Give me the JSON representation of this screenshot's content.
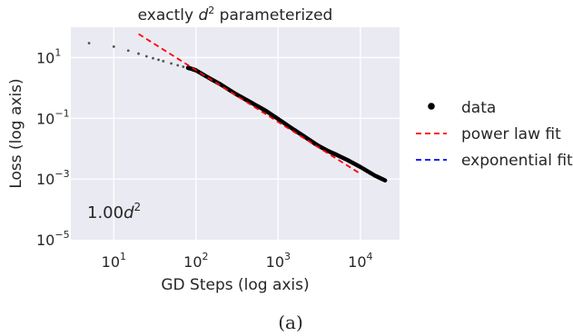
{
  "chart_data": {
    "type": "scatter",
    "title_base": "exactly ",
    "title_var": "d",
    "title_exp": "2",
    "title_rest": " parameterized",
    "xlabel": "GD Steps (log axis)",
    "ylabel": "Loss (log axis)",
    "xscale": "log",
    "yscale": "log",
    "xlim": [
      3,
      30000
    ],
    "ylim": [
      1e-05,
      100
    ],
    "grid": true,
    "legend_position": "right",
    "x_ticks": [
      {
        "value": 10,
        "base": "10",
        "exp": "1"
      },
      {
        "value": 100,
        "base": "10",
        "exp": "2"
      },
      {
        "value": 1000,
        "base": "10",
        "exp": "3"
      },
      {
        "value": 10000,
        "base": "10",
        "exp": "4"
      }
    ],
    "y_ticks": [
      {
        "value": 10,
        "base": "10",
        "exp": "1"
      },
      {
        "value": 0.1,
        "base": "10",
        "exp": "−1"
      },
      {
        "value": 0.001,
        "base": "10",
        "exp": "−3"
      },
      {
        "value": 1e-05,
        "base": "10",
        "exp": "−5"
      }
    ],
    "annotation": {
      "coef": "1.00",
      "var": "d",
      "exp": "2"
    },
    "series": [
      {
        "name": "data",
        "style": "points",
        "color": "#000000",
        "x": [
          5,
          10,
          15,
          20,
          25,
          30,
          35,
          40,
          50,
          60,
          70,
          80,
          90,
          100,
          150,
          200,
          300,
          400,
          500,
          700,
          1000,
          1500,
          2000,
          2500,
          3000,
          4000,
          5000,
          7000,
          10000,
          15000,
          20000
        ],
        "y": [
          30,
          23,
          17,
          13.5,
          11,
          9.5,
          8.5,
          7.6,
          6.4,
          5.6,
          5.0,
          4.6,
          4.2,
          3.8,
          2.0,
          1.3,
          0.65,
          0.42,
          0.3,
          0.18,
          0.095,
          0.045,
          0.027,
          0.018,
          0.013,
          0.0085,
          0.0065,
          0.0042,
          0.0025,
          0.0013,
          0.0009
        ]
      },
      {
        "name": "power law fit",
        "style": "dashed",
        "color": "#ff0000",
        "x": [
          20,
          10000
        ],
        "y": [
          60,
          0.0015
        ]
      },
      {
        "name": "exponential fit",
        "style": "dashed",
        "color": "#0000ff",
        "x": [],
        "y": []
      }
    ]
  },
  "caption": "(a)"
}
